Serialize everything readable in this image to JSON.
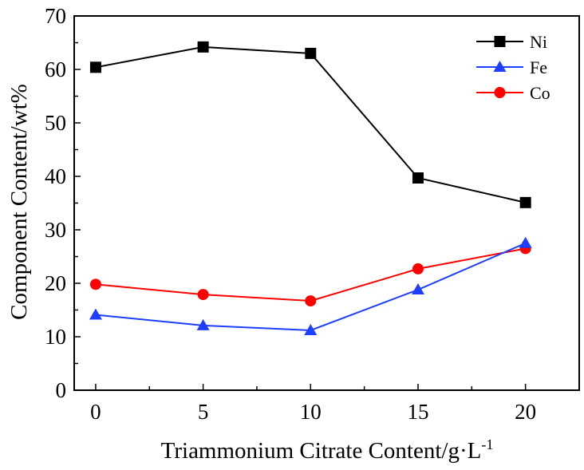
{
  "chart_data": {
    "type": "line",
    "title": "",
    "xlabel": "Triammonium Citrate Content/g·L",
    "xlabel_superscript": "-1",
    "ylabel": "Component Content/wt%",
    "x": [
      0,
      5,
      10,
      15,
      20
    ],
    "xlim": [
      -1,
      22.5
    ],
    "ylim": [
      0,
      70
    ],
    "xticks": [
      "0",
      "5",
      "10",
      "15",
      "20"
    ],
    "yticks": [
      "0",
      "10",
      "20",
      "30",
      "40",
      "50",
      "60",
      "70"
    ],
    "grid": false,
    "legend_position": "top-right",
    "series": [
      {
        "name": "Ni",
        "color": "#000000",
        "marker": "square",
        "values": [
          60.4,
          64.2,
          63.0,
          39.7,
          35.1
        ]
      },
      {
        "name": "Fe",
        "color": "#1f3fff",
        "marker": "triangle",
        "values": [
          14.1,
          12.1,
          11.2,
          18.8,
          27.5
        ]
      },
      {
        "name": "Co",
        "color": "#ff0000",
        "marker": "circle",
        "values": [
          19.8,
          17.9,
          16.7,
          22.7,
          26.5
        ]
      }
    ]
  }
}
